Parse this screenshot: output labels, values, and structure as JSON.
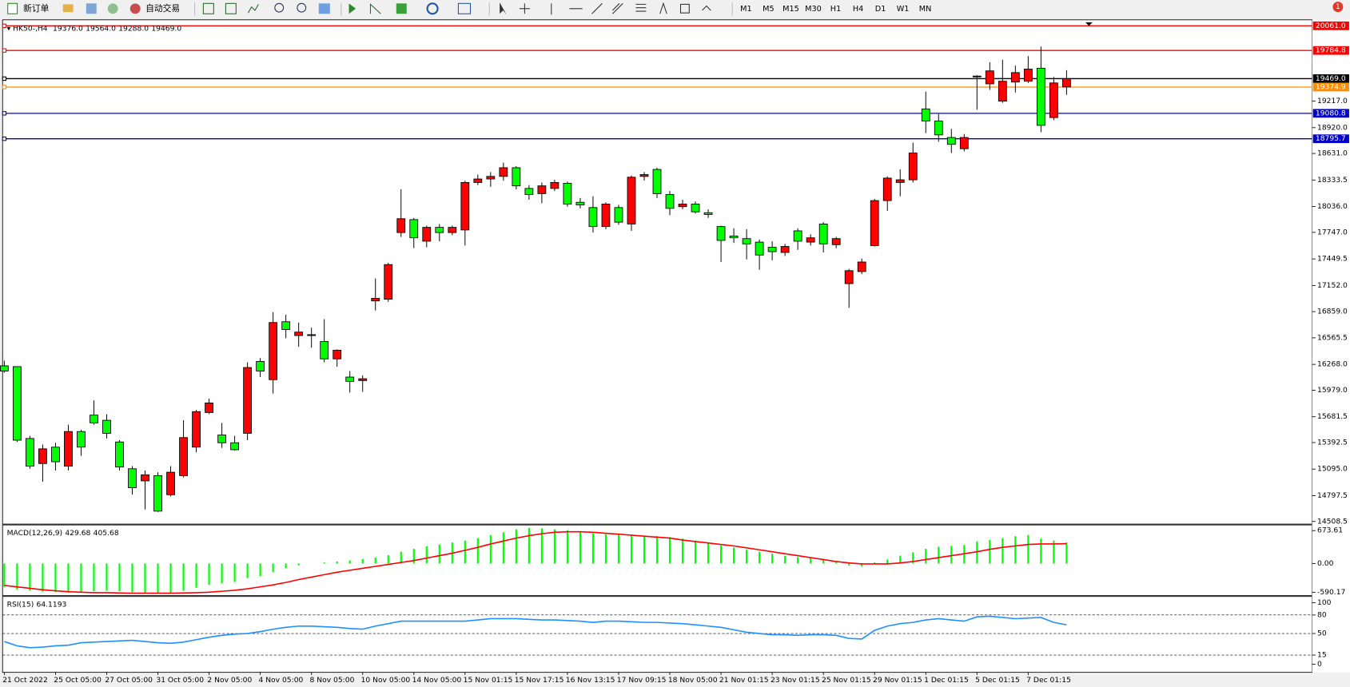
{
  "toolbar": {
    "new_order": "新订单",
    "auto_trading": "自动交易",
    "timeframes": [
      "M1",
      "M5",
      "M15",
      "M30",
      "H1",
      "H4",
      "D1",
      "W1",
      "MN"
    ],
    "notifications": 1
  },
  "header": {
    "symbol": "HK50-,H4",
    "ohlc": [
      "19376.0",
      "19564.0",
      "19288.0",
      "19469.0"
    ]
  },
  "chart_data": [
    {
      "type": "candlestick",
      "up_color": "#ff0000",
      "down_color": "#00ff00",
      "categories": [
        "21 Oct 2022",
        null,
        null,
        null,
        "25 Oct 05:00",
        null,
        null,
        null,
        "27 Oct 05:00",
        null,
        null,
        null,
        "31 Oct 05:00",
        null,
        null,
        null,
        "2 Nov 05:00",
        null,
        null,
        null,
        "4 Nov 05:00",
        null,
        null,
        null,
        "8 Nov 05:00",
        null,
        null,
        null,
        "10 Nov 05:00",
        null,
        null,
        null,
        "14 Nov 05:00",
        null,
        null,
        null,
        "15 Nov 01:15",
        null,
        null,
        null,
        "15 Nov 17:15",
        null,
        null,
        null,
        "16 Nov 13:15",
        null,
        null,
        null,
        "17 Nov 09:15",
        null,
        null,
        null,
        "18 Nov 05:00",
        null,
        null,
        null,
        "21 Nov 01:15",
        null,
        null,
        null,
        "23 Nov 01:15",
        null,
        null,
        null,
        "25 Nov 01:15",
        null,
        null,
        null,
        "29 Nov 01:15",
        null,
        null,
        null,
        "1 Dec 01:15",
        null,
        null,
        null,
        "5 Dec 01:15",
        null,
        null,
        null,
        "7 Dec 01:15",
        null,
        null,
        null
      ],
      "open": [
        16252,
        16243,
        15438,
        15157,
        15341,
        15128,
        15516,
        15700,
        15642,
        15399,
        15099,
        14963,
        15022,
        14808,
        15022,
        15341,
        15729,
        15477,
        15390,
        15496,
        16301,
        16097,
        16746,
        16591,
        16591,
        16524,
        16330,
        16126,
        16087,
        16979,
        16998,
        17745,
        17890,
        17648,
        17803,
        17745,
        17774,
        18306,
        18345,
        18374,
        18471,
        18239,
        18181,
        18239,
        18297,
        18084,
        18025,
        17812,
        18025,
        17841,
        18374,
        18452,
        18171,
        18035,
        18064,
        17967,
        17812,
        17706,
        17677,
        17638,
        17580,
        17522,
        17764,
        17638,
        17841,
        17609,
        17173,
        17308,
        17599,
        18103,
        18306,
        18336,
        19130,
        18994,
        18810,
        18684,
        19489,
        19411,
        19217,
        19431,
        19440,
        19586,
        19033,
        19376
      ],
      "high": [
        16310,
        16243,
        15467,
        15370,
        15390,
        15593,
        15535,
        15865,
        15710,
        15419,
        15128,
        15080,
        15060,
        15128,
        15642,
        15758,
        15884,
        15613,
        15467,
        16291,
        16339,
        16853,
        16824,
        16737,
        16679,
        16775,
        16436,
        16194,
        16146,
        17231,
        17405,
        18229,
        17909,
        17822,
        17841,
        17822,
        18326,
        18394,
        18423,
        18529,
        18490,
        18277,
        18306,
        18336,
        18316,
        18132,
        18151,
        18084,
        18055,
        18384,
        18423,
        18471,
        18210,
        18113,
        18093,
        18006,
        17822,
        17793,
        17783,
        17667,
        17648,
        17618,
        17793,
        17725,
        17861,
        17696,
        17337,
        17454,
        18122,
        18374,
        18452,
        18752,
        19324,
        19072,
        18907,
        18849,
        19508,
        19653,
        19682,
        19615,
        19721,
        19828,
        19489,
        19564
      ],
      "low": [
        16175,
        15399,
        15099,
        14954,
        15080,
        15080,
        15244,
        15593,
        15438,
        15080,
        14808,
        14644,
        14615,
        14789,
        15002,
        15283,
        15710,
        15332,
        15303,
        15419,
        16126,
        15942,
        16562,
        16465,
        16456,
        16291,
        16243,
        15952,
        15960,
        16872,
        16969,
        17696,
        17570,
        17580,
        17648,
        17716,
        17599,
        18277,
        18258,
        18326,
        18229,
        18113,
        18074,
        18210,
        18035,
        18016,
        17745,
        17783,
        17832,
        17764,
        18326,
        18132,
        17938,
        18006,
        17958,
        17909,
        17415,
        17628,
        17444,
        17328,
        17434,
        17483,
        17551,
        17599,
        17522,
        17570,
        16901,
        17279,
        17589,
        17987,
        18151,
        18306,
        18859,
        18762,
        18636,
        18655,
        19120,
        19343,
        19198,
        19314,
        19421,
        18869,
        19004,
        19288
      ],
      "close": [
        16194,
        15419,
        15128,
        15322,
        15177,
        15516,
        15341,
        15613,
        15496,
        15118,
        14886,
        15031,
        14624,
        15060,
        15448,
        15739,
        15836,
        15390,
        15312,
        16233,
        16194,
        16737,
        16659,
        16630,
        16601,
        16330,
        16427,
        16078,
        16107,
        17008,
        17386,
        17900,
        17686,
        17803,
        17745,
        17803,
        18306,
        18345,
        18374,
        18471,
        18268,
        18171,
        18268,
        18306,
        18064,
        18055,
        17812,
        18064,
        17861,
        18365,
        18394,
        18181,
        18016,
        18064,
        17977,
        17948,
        17657,
        17686,
        17618,
        17493,
        17531,
        17589,
        17648,
        17686,
        17618,
        17677,
        17318,
        17415,
        18103,
        18355,
        18336,
        18636,
        18994,
        18839,
        18733,
        18810,
        19498,
        19556,
        19440,
        19537,
        19576,
        18946,
        19421,
        19469
      ],
      "ylim": [
        14479,
        20128
      ],
      "yticks": [
        {
          "value": 19217.0,
          "label": "19217.0"
        },
        {
          "value": 18920.0,
          "label": "18920.0"
        },
        {
          "value": 18631.0,
          "label": "18631.0"
        },
        18333.5,
        {
          "value": 18036.0,
          "label": "18036.0"
        },
        {
          "value": 17747.0,
          "label": "17747.0"
        },
        17449.5,
        {
          "value": 17152.0,
          "label": "17152.0"
        },
        {
          "value": 16859.0,
          "label": "16859.0"
        },
        16565.5,
        {
          "value": 16268.0,
          "label": "16268.0"
        },
        {
          "value": 15979.0,
          "label": "15979.0"
        },
        15681.5,
        15392.5,
        {
          "value": 15095.0,
          "label": "15095.0"
        },
        14797.5,
        14508.5
      ],
      "levels": [
        {
          "value": 20061.0,
          "label": "20061.0",
          "color": "#ff0000"
        },
        {
          "value": 19784.8,
          "label": "19784.8",
          "color": "#ff0000"
        },
        {
          "value": 19469.0,
          "label": "19469.0",
          "color": "#000000"
        },
        {
          "value": 19374.9,
          "label": "19374.9",
          "color": "#ff8c00"
        },
        {
          "value": 19080.8,
          "label": "19080.8",
          "color": "#0000cd"
        },
        {
          "value": 18795.7,
          "label": "18795.7",
          "color": "#0000cd"
        }
      ]
    },
    {
      "type": "macd",
      "title": "MACD(12,26,9)",
      "series": [
        {
          "color": "#00ff00",
          "values": [
            -480,
            -540,
            -560,
            -580,
            -590,
            -600,
            -590,
            -570,
            -560,
            -570,
            -590,
            -600,
            -610,
            -600,
            -560,
            -500,
            -440,
            -410,
            -380,
            -300,
            -260,
            -180,
            -100,
            -40,
            0,
            20,
            40,
            60,
            90,
            120,
            170,
            240,
            300,
            350,
            390,
            430,
            470,
            520,
            580,
            640,
            700,
            730,
            720,
            700,
            680,
            650,
            620,
            600,
            590,
            580,
            570,
            560,
            540,
            510,
            470,
            420,
            370,
            330,
            280,
            240,
            200,
            160,
            130,
            110,
            80,
            50,
            -40,
            -60,
            20,
            80,
            160,
            230,
            300,
            340,
            360,
            380,
            450,
            480,
            520,
            560,
            580,
            510,
            470,
            429.68
          ]
        },
        {
          "color": "#ff0000",
          "values": [
            -450,
            -480,
            -510,
            -540,
            -560,
            -580,
            -590,
            -600,
            -600,
            -605,
            -610,
            -610,
            -610,
            -610,
            -605,
            -600,
            -590,
            -570,
            -550,
            -520,
            -480,
            -440,
            -390,
            -330,
            -280,
            -230,
            -180,
            -140,
            -100,
            -60,
            -20,
            20,
            60,
            110,
            160,
            210,
            270,
            330,
            400,
            460,
            520,
            570,
            610,
            640,
            650,
            650,
            640,
            620,
            600,
            580,
            560,
            540,
            520,
            480,
            450,
            420,
            390,
            360,
            320,
            280,
            240,
            200,
            160,
            120,
            80,
            40,
            10,
            -10,
            -10,
            -10,
            10,
            40,
            80,
            120,
            160,
            200,
            240,
            290,
            330,
            360,
            390,
            400,
            400,
            405.68
          ]
        }
      ],
      "ylim": [
        -660,
        790
      ],
      "yticks": [
        673.61,
        {
          "value": 0,
          "label": "0.00"
        },
        -590.17
      ]
    },
    {
      "type": "rsi",
      "title": "RSI(15)",
      "color": "#1e90ff",
      "values": [
        37,
        30,
        27,
        28,
        30,
        31,
        35,
        36,
        37,
        38,
        39,
        37,
        35,
        34,
        36,
        40,
        44,
        47,
        49,
        50,
        53,
        57,
        60,
        62,
        62,
        61,
        60,
        58,
        57,
        62,
        66,
        70,
        70,
        70,
        70,
        70,
        70,
        72,
        74,
        74,
        74,
        73,
        72,
        72,
        71,
        70,
        68,
        70,
        70,
        69,
        68,
        68,
        67,
        66,
        64,
        62,
        60,
        56,
        52,
        50,
        48,
        48,
        47,
        48,
        48,
        47,
        42,
        41,
        55,
        62,
        66,
        68,
        72,
        74,
        72,
        70,
        77,
        78,
        76,
        74,
        75,
        76,
        68,
        64.1193
      ],
      "ylim": [
        -13,
        110
      ],
      "yticks": [
        100,
        80,
        50,
        15,
        0
      ]
    }
  ]
}
